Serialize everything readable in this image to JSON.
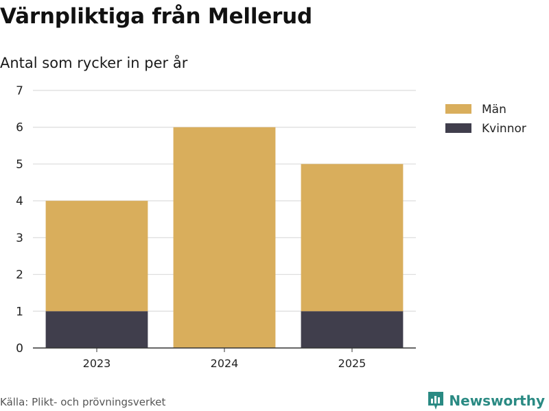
{
  "title": "Värnpliktiga från Mellerud",
  "subtitle": "Antal som rycker in per år",
  "source": "Källa: Plikt- och prövningsverket",
  "brand": {
    "name": "Newsworthy",
    "icon": "newsworthy-logo-icon"
  },
  "colors": {
    "man": "#d9ae5c",
    "kvinnor": "#403e4c",
    "grid": "#dcdcdc",
    "axis": "#333333",
    "brand": "#2a8a83"
  },
  "chart_data": {
    "type": "bar",
    "stacked": true,
    "title": "Värnpliktiga från Mellerud",
    "subtitle": "Antal som rycker in per år",
    "xlabel": "",
    "ylabel": "",
    "categories": [
      "2023",
      "2024",
      "2025"
    ],
    "series": [
      {
        "name": "Kvinnor",
        "values": [
          1,
          0,
          1
        ]
      },
      {
        "name": "Män",
        "values": [
          3,
          6,
          4
        ]
      }
    ],
    "ylim": [
      0,
      7
    ],
    "yticks": [
      0,
      1,
      2,
      3,
      4,
      5,
      6,
      7
    ],
    "grid": true,
    "legend": {
      "placement": "top-right",
      "entries": [
        "Män",
        "Kvinnor"
      ]
    }
  }
}
